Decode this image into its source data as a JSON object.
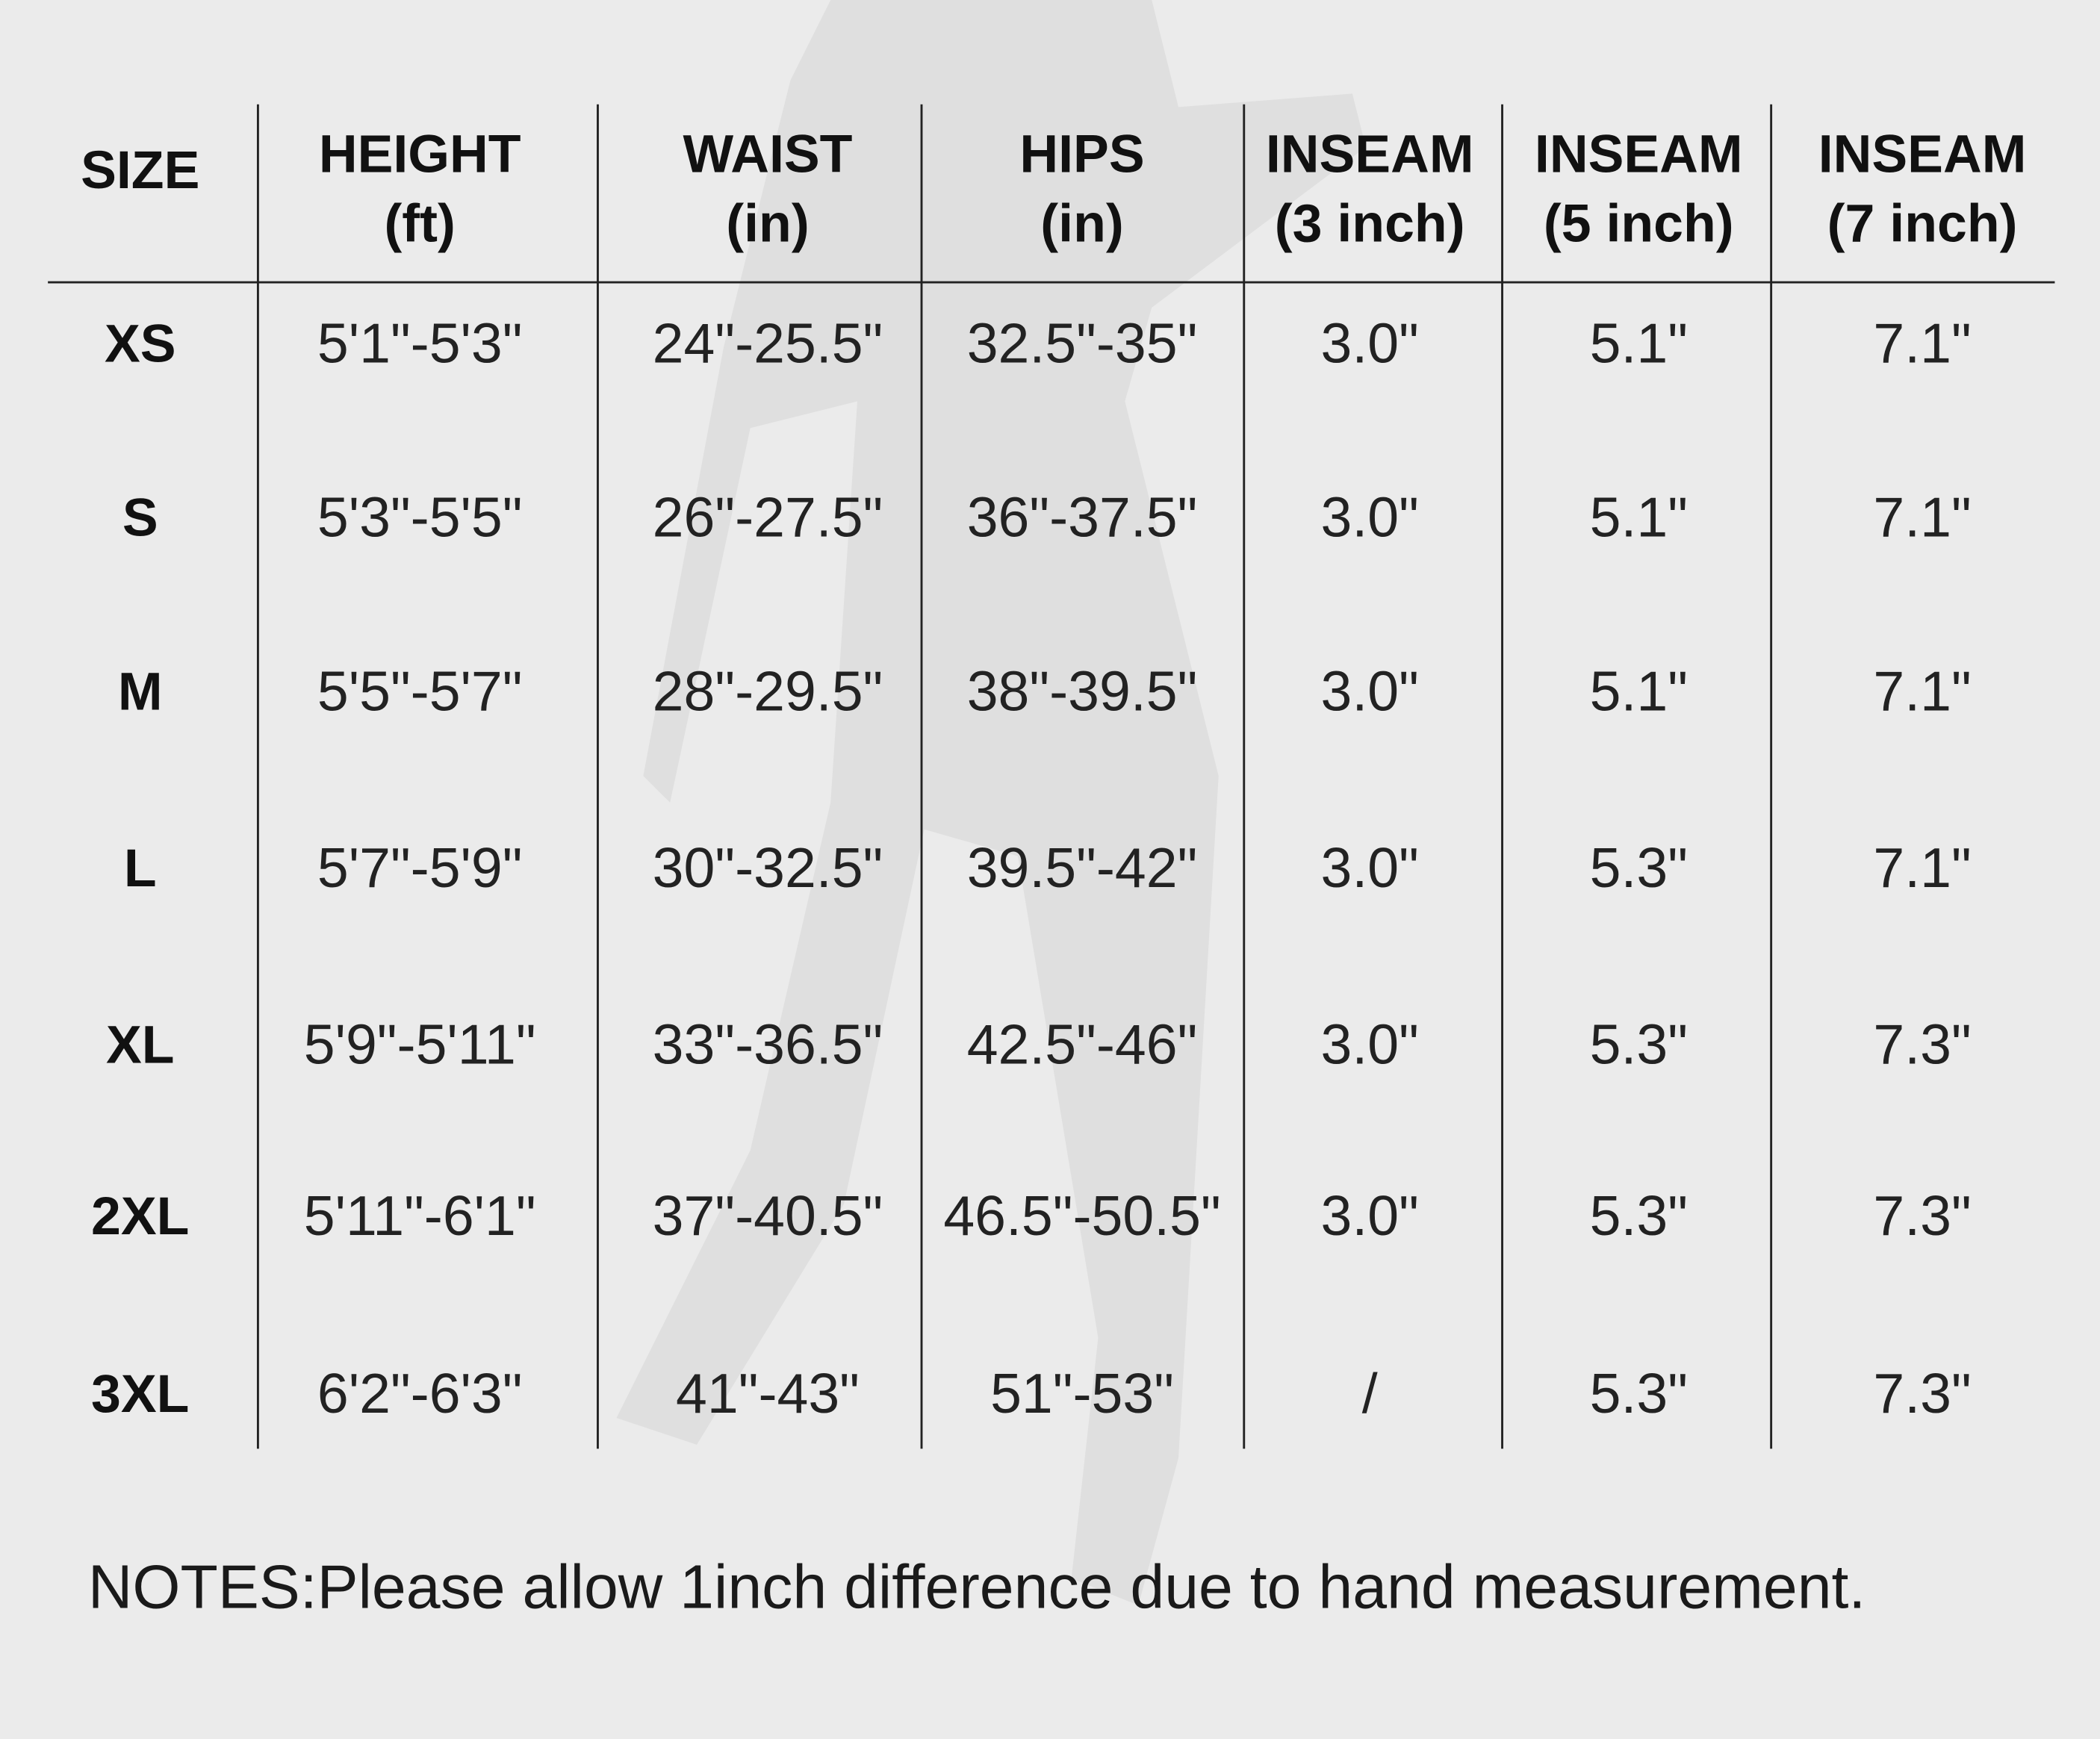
{
  "table": {
    "header": [
      [
        "SIZE"
      ],
      [
        "HEIGHT",
        "(ft)"
      ],
      [
        "WAIST",
        "(in)"
      ],
      [
        "HIPS",
        "(in)"
      ],
      [
        "INSEAM",
        "(3 inch)"
      ],
      [
        "INSEAM",
        "(5 inch)"
      ],
      [
        "INSEAM",
        "(7 inch)"
      ]
    ],
    "rows": [
      [
        "XS",
        "5'1\"-5'3\"",
        "24\"-25.5\"",
        "32.5\"-35\"",
        "3.0\"",
        "5.1\"",
        "7.1\""
      ],
      [
        "S",
        "5'3\"-5'5\"",
        "26\"-27.5\"",
        "36\"-37.5\"",
        "3.0\"",
        "5.1\"",
        "7.1\""
      ],
      [
        "M",
        "5'5\"-5'7\"",
        "28\"-29.5\"",
        "38\"-39.5\"",
        "3.0\"",
        "5.1\"",
        "7.1\""
      ],
      [
        "L",
        "5'7\"-5'9\"",
        "30\"-32.5\"",
        "39.5\"-42\"",
        "3.0\"",
        "5.3\"",
        "7.1\""
      ],
      [
        "XL",
        "5'9\"-5'11\"",
        "33\"-36.5\"",
        "42.5\"-46\"",
        "3.0\"",
        "5.3\"",
        "7.3\""
      ],
      [
        "2XL",
        "5'11\"-6'1\"",
        "37\"-40.5\"",
        "46.5\"-50.5\"",
        "3.0\"",
        "5.3\"",
        "7.3\""
      ],
      [
        "3XL",
        "6'2\"-6'3\"",
        "41\"-43\"",
        "51\"-53\"",
        "/",
        "5.3\"",
        "7.3\""
      ]
    ]
  },
  "notes": "NOTES:Please allow 1inch difference due to hand measurement."
}
